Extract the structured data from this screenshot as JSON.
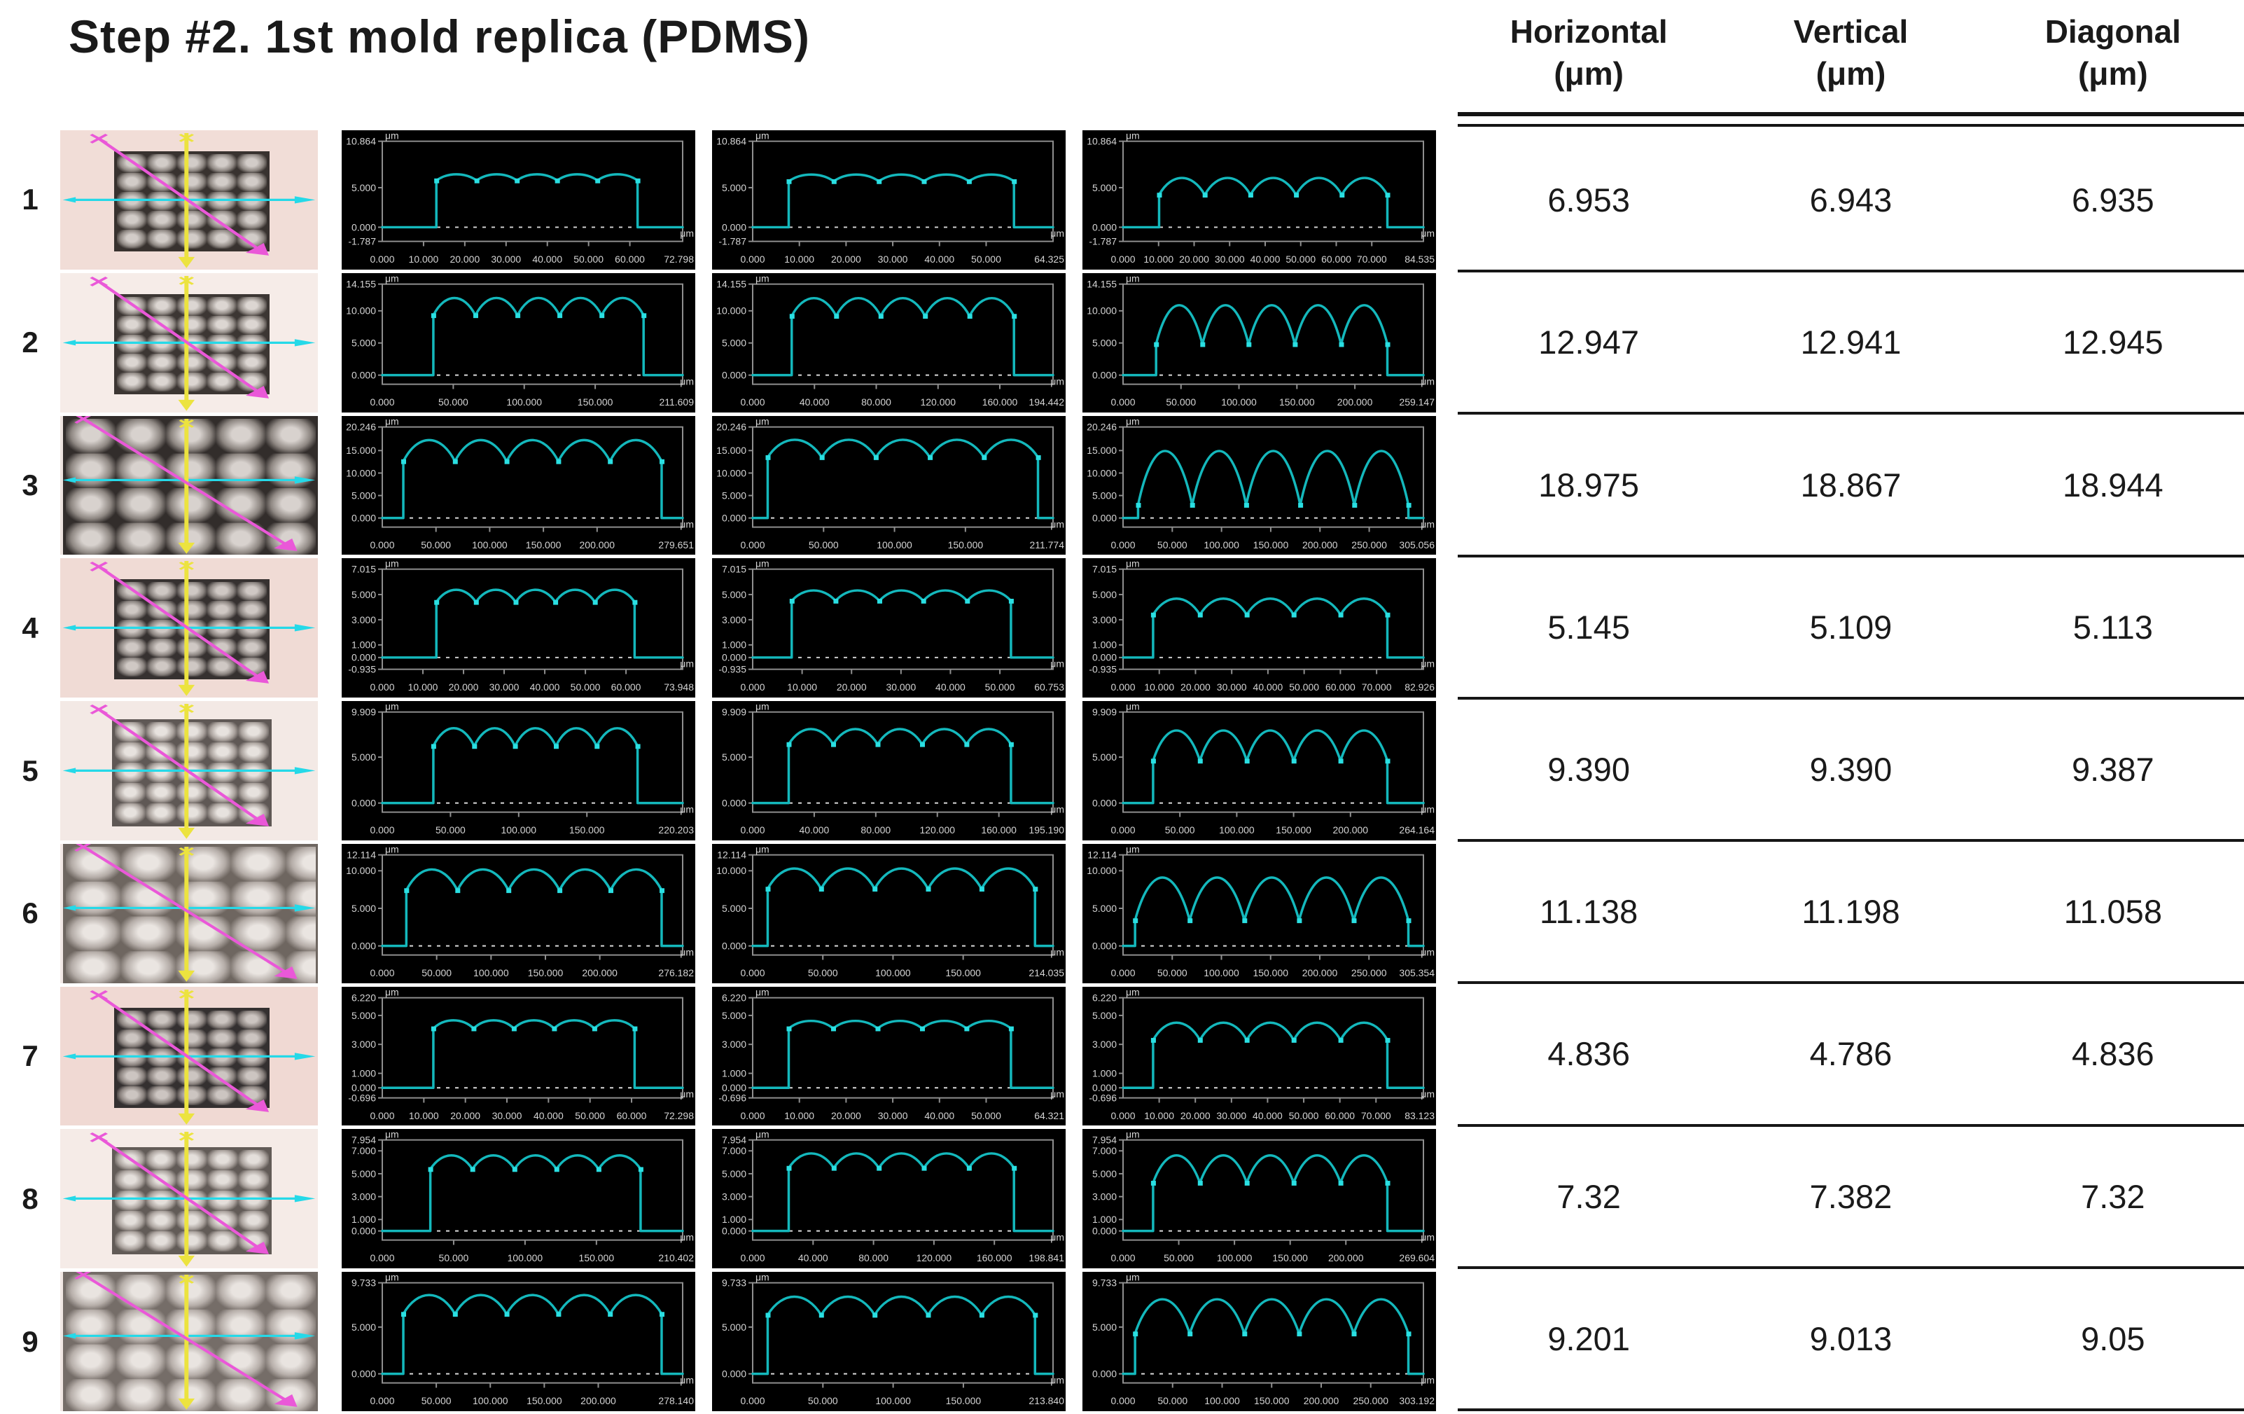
{
  "title": "Step #2. 1st mold replica (PDMS)",
  "columns": [
    {
      "label": "Horizontal",
      "unit": "(μm)"
    },
    {
      "label": "Vertical",
      "unit": "(μm)"
    },
    {
      "label": "Diagonal",
      "unit": "(μm)"
    }
  ],
  "plot_unit": "μm",
  "colors": {
    "trace": "#14b8bc",
    "marker": "#2adfe2",
    "plot_bg": "#000000",
    "frame": "#8f8f8f",
    "axis_text": "#d4d4d4",
    "cyan_arrow": "#25d9e8",
    "yellow_arrow": "#ece33f",
    "magenta_arrow": "#ea58d8",
    "table_line": "#161616"
  },
  "chart_data": {
    "type": "table",
    "columns": [
      "Sample",
      "Horizontal (μm)",
      "Vertical (μm)",
      "Diagonal (μm)"
    ],
    "rows": [
      [
        "1",
        "6.953",
        "6.943",
        "6.935"
      ],
      [
        "2",
        "12.947",
        "12.941",
        "12.945"
      ],
      [
        "3",
        "18.975",
        "18.867",
        "18.944"
      ],
      [
        "4",
        "5.145",
        "5.109",
        "5.113"
      ],
      [
        "5",
        "9.390",
        "9.390",
        "9.387"
      ],
      [
        "6",
        "11.138",
        "11.198",
        "11.058"
      ],
      [
        "7",
        "4.836",
        "4.786",
        "4.836"
      ],
      [
        "8",
        "7.32",
        "7.382",
        "7.32"
      ],
      [
        "9",
        "9.201",
        "9.013",
        "9.05"
      ]
    ]
  },
  "rows": [
    {
      "num": "1",
      "values": [
        "6.953",
        "6.943",
        "6.935"
      ],
      "micro": {
        "variant": "small",
        "bg": "#f1ddd7",
        "light": "#d2ccc8",
        "mid": "#8f8883",
        "dark": "#38322f",
        "cols": "20%",
        "rows_sz": "20%"
      },
      "plots": [
        {
          "y": [
            "10.864",
            "5.000",
            "0.000",
            "-1.787"
          ],
          "x": [
            "0.000",
            "10.000",
            "20.000",
            "30.000",
            "40.000",
            "50.000",
            "60.000",
            "72.798"
          ],
          "peak": 6.95,
          "valley": 5.9,
          "rise": 0.18,
          "fall": 0.85
        },
        {
          "y": [
            "10.864",
            "5.000",
            "0.000",
            "-1.787"
          ],
          "x": [
            "0.000",
            "10.000",
            "20.000",
            "30.000",
            "40.000",
            "50.000",
            "64.325"
          ],
          "peak": 6.94,
          "valley": 5.8,
          "rise": 0.12,
          "fall": 0.87
        },
        {
          "y": [
            "10.864",
            "5.000",
            "0.000",
            "-1.787"
          ],
          "x": [
            "0.000",
            "10.000",
            "20.000",
            "30.000",
            "40.000",
            "50.000",
            "60.000",
            "70.000",
            "84.535"
          ],
          "peak": 6.94,
          "valley": 4.1,
          "rise": 0.12,
          "fall": 0.88
        }
      ]
    },
    {
      "num": "2",
      "values": [
        "12.947",
        "12.941",
        "12.945"
      ],
      "micro": {
        "variant": "small",
        "bg": "#f6ece8",
        "light": "#dcd6d2",
        "mid": "#948d88",
        "dark": "#3c3633",
        "cols": "20%",
        "rows_sz": "20%"
      },
      "plots": [
        {
          "y": [
            "14.155",
            "10.000",
            "5.000",
            "0.000"
          ],
          "x": [
            "0.000",
            "50.000",
            "100.000",
            "150.000",
            "211.609"
          ],
          "peak": 12.9,
          "valley": 9.3,
          "rise": 0.17,
          "fall": 0.87
        },
        {
          "y": [
            "14.155",
            "10.000",
            "5.000",
            "0.000"
          ],
          "x": [
            "0.000",
            "40.000",
            "80.000",
            "120.000",
            "160.000",
            "194.442"
          ],
          "peak": 12.9,
          "valley": 9.2,
          "rise": 0.13,
          "fall": 0.87
        },
        {
          "y": [
            "14.155",
            "10.000",
            "5.000",
            "0.000"
          ],
          "x": [
            "0.000",
            "50.000",
            "100.000",
            "150.000",
            "200.000",
            "259.147"
          ],
          "peak": 12.9,
          "valley": 4.8,
          "rise": 0.11,
          "fall": 0.88
        }
      ]
    },
    {
      "num": "3",
      "values": [
        "18.975",
        "18.867",
        "18.944"
      ],
      "micro": {
        "variant": "large",
        "bg": "#eee4e0",
        "light": "#d8d2ce",
        "mid": "#8e8782",
        "dark": "#322d2b",
        "cols": "20%",
        "rows_sz": "25%"
      },
      "plots": [
        {
          "y": [
            "20.246",
            "15.000",
            "10.000",
            "5.000",
            "0.000"
          ],
          "x": [
            "0.000",
            "50.000",
            "100.000",
            "150.000",
            "200.000",
            "279.651"
          ],
          "peak": 18.9,
          "valley": 12.6,
          "rise": 0.07,
          "fall": 0.93
        },
        {
          "y": [
            "20.246",
            "15.000",
            "10.000",
            "5.000",
            "0.000"
          ],
          "x": [
            "0.000",
            "50.000",
            "100.000",
            "150.000",
            "211.774"
          ],
          "peak": 18.7,
          "valley": 13.5,
          "rise": 0.05,
          "fall": 0.95
        },
        {
          "y": [
            "20.246",
            "15.000",
            "10.000",
            "5.000",
            "0.000"
          ],
          "x": [
            "0.000",
            "50.000",
            "100.000",
            "150.000",
            "200.000",
            "250.000",
            "305.056"
          ],
          "peak": 18.9,
          "valley": 2.9,
          "rise": 0.05,
          "fall": 0.95
        }
      ]
    },
    {
      "num": "4",
      "values": [
        "5.145",
        "5.109",
        "5.113"
      ],
      "micro": {
        "variant": "small",
        "bg": "#f0dbd5",
        "light": "#cfc8c4",
        "mid": "#8b8480",
        "dark": "#363130",
        "cols": "20%",
        "rows_sz": "20%"
      },
      "plots": [
        {
          "y": [
            "7.015",
            "5.000",
            "3.000",
            "1.000",
            "0.000",
            "-0.935"
          ],
          "x": [
            "0.000",
            "10.000",
            "20.000",
            "30.000",
            "40.000",
            "50.000",
            "60.000",
            "73.948"
          ],
          "peak": 5.7,
          "valley": 4.4,
          "rise": 0.18,
          "fall": 0.84
        },
        {
          "y": [
            "7.015",
            "5.000",
            "3.000",
            "1.000",
            "0.000",
            "-0.935"
          ],
          "x": [
            "0.000",
            "10.000",
            "20.000",
            "30.000",
            "40.000",
            "50.000",
            "60.753"
          ],
          "peak": 5.6,
          "valley": 4.5,
          "rise": 0.13,
          "fall": 0.86
        },
        {
          "y": [
            "7.015",
            "5.000",
            "3.000",
            "1.000",
            "0.000",
            "-0.935"
          ],
          "x": [
            "0.000",
            "10.000",
            "20.000",
            "30.000",
            "40.000",
            "50.000",
            "60.000",
            "70.000",
            "82.926"
          ],
          "peak": 5.1,
          "valley": 3.4,
          "rise": 0.1,
          "fall": 0.88
        }
      ]
    },
    {
      "num": "5",
      "values": [
        "9.390",
        "9.390",
        "9.387"
      ],
      "micro": {
        "variant": "medium",
        "bg": "#f3e9e5",
        "light": "#e7e2de",
        "mid": "#aaa29d",
        "dark": "#5f5855",
        "cols": "20%",
        "rows_sz": "20%"
      },
      "plots": [
        {
          "y": [
            "9.909",
            "5.000",
            "0.000"
          ],
          "x": [
            "0.000",
            "50.000",
            "100.000",
            "150.000",
            "220.203"
          ],
          "peak": 8.8,
          "valley": 6.2,
          "rise": 0.17,
          "fall": 0.85
        },
        {
          "y": [
            "9.909",
            "5.000",
            "0.000"
          ],
          "x": [
            "0.000",
            "40.000",
            "80.000",
            "120.000",
            "160.000",
            "195.190"
          ],
          "peak": 8.6,
          "valley": 6.4,
          "rise": 0.12,
          "fall": 0.86
        },
        {
          "y": [
            "9.909",
            "5.000",
            "0.000"
          ],
          "x": [
            "0.000",
            "50.000",
            "100.000",
            "150.000",
            "200.000",
            "264.164"
          ],
          "peak": 9.0,
          "valley": 4.6,
          "rise": 0.1,
          "fall": 0.88
        }
      ]
    },
    {
      "num": "6",
      "values": [
        "11.138",
        "11.198",
        "11.058"
      ],
      "micro": {
        "variant": "large",
        "bg": "#f3e9e6",
        "light": "#eae5e1",
        "mid": "#b4aca7",
        "dark": "#6e6660",
        "cols": "22%",
        "rows_sz": "25%"
      },
      "plots": [
        {
          "y": [
            "12.114",
            "10.000",
            "5.000",
            "0.000"
          ],
          "x": [
            "0.000",
            "50.000",
            "100.000",
            "150.000",
            "200.000",
            "276.182"
          ],
          "peak": 11.1,
          "valley": 7.4,
          "rise": 0.08,
          "fall": 0.93
        },
        {
          "y": [
            "12.114",
            "10.000",
            "5.000",
            "0.000"
          ],
          "x": [
            "0.000",
            "50.000",
            "100.000",
            "150.000",
            "214.035"
          ],
          "peak": 11.2,
          "valley": 7.6,
          "rise": 0.05,
          "fall": 0.94
        },
        {
          "y": [
            "12.114",
            "10.000",
            "5.000",
            "0.000"
          ],
          "x": [
            "0.000",
            "50.000",
            "100.000",
            "150.000",
            "200.000",
            "250.000",
            "305.354"
          ],
          "peak": 11.0,
          "valley": 3.4,
          "rise": 0.04,
          "fall": 0.95
        }
      ]
    },
    {
      "num": "7",
      "values": [
        "4.836",
        "4.786",
        "4.836"
      ],
      "micro": {
        "variant": "small",
        "bg": "#f0d9d3",
        "light": "#ccc5c1",
        "mid": "#8a827e",
        "dark": "#343030",
        "cols": "20%",
        "rows_sz": "20%"
      },
      "plots": [
        {
          "y": [
            "6.220",
            "5.000",
            "3.000",
            "1.000",
            "0.000",
            "-0.696"
          ],
          "x": [
            "0.000",
            "10.000",
            "20.000",
            "30.000",
            "40.000",
            "50.000",
            "60.000",
            "72.298"
          ],
          "peak": 4.85,
          "valley": 4.1,
          "rise": 0.17,
          "fall": 0.84
        },
        {
          "y": [
            "6.220",
            "5.000",
            "3.000",
            "1.000",
            "0.000",
            "-0.696"
          ],
          "x": [
            "0.000",
            "10.000",
            "20.000",
            "30.000",
            "40.000",
            "50.000",
            "64.321"
          ],
          "peak": 4.8,
          "valley": 4.1,
          "rise": 0.12,
          "fall": 0.86
        },
        {
          "y": [
            "6.220",
            "5.000",
            "3.000",
            "1.000",
            "0.000",
            "-0.696"
          ],
          "x": [
            "0.000",
            "10.000",
            "20.000",
            "30.000",
            "40.000",
            "50.000",
            "60.000",
            "70.000",
            "83.123"
          ],
          "peak": 4.9,
          "valley": 3.3,
          "rise": 0.1,
          "fall": 0.88
        }
      ]
    },
    {
      "num": "8",
      "values": [
        "7.32",
        "7.382",
        "7.32"
      ],
      "micro": {
        "variant": "medium",
        "bg": "#f5ebe7",
        "light": "#e4dfdb",
        "mid": "#aba39e",
        "dark": "#625b57",
        "cols": "20%",
        "rows_sz": "20%"
      },
      "plots": [
        {
          "y": [
            "7.954",
            "7.000",
            "5.000",
            "3.000",
            "1.000",
            "0.000"
          ],
          "x": [
            "0.000",
            "50.000",
            "100.000",
            "150.000",
            "210.402"
          ],
          "peak": 7.0,
          "valley": 5.4,
          "rise": 0.16,
          "fall": 0.86
        },
        {
          "y": [
            "7.954",
            "7.000",
            "5.000",
            "3.000",
            "1.000",
            "0.000"
          ],
          "x": [
            "0.000",
            "40.000",
            "80.000",
            "120.000",
            "160.000",
            "198.841"
          ],
          "peak": 7.2,
          "valley": 5.5,
          "rise": 0.12,
          "fall": 0.87
        },
        {
          "y": [
            "7.954",
            "7.000",
            "5.000",
            "3.000",
            "1.000",
            "0.000"
          ],
          "x": [
            "0.000",
            "50.000",
            "100.000",
            "150.000",
            "200.000",
            "269.604"
          ],
          "peak": 7.4,
          "valley": 4.2,
          "rise": 0.1,
          "fall": 0.88
        }
      ]
    },
    {
      "num": "9",
      "values": [
        "9.201",
        "9.013",
        "9.05"
      ],
      "micro": {
        "variant": "large",
        "bg": "#f2e8e4",
        "light": "#e9e4e0",
        "mid": "#b7afaa",
        "dark": "#756d68",
        "cols": "20%",
        "rows_sz": "25%"
      },
      "plots": [
        {
          "y": [
            "9.733",
            "5.000",
            "0.000"
          ],
          "x": [
            "0.000",
            "50.000",
            "100.000",
            "150.000",
            "200.000",
            "278.140"
          ],
          "peak": 9.1,
          "valley": 6.4,
          "rise": 0.07,
          "fall": 0.93
        },
        {
          "y": [
            "9.733",
            "5.000",
            "0.000"
          ],
          "x": [
            "0.000",
            "50.000",
            "100.000",
            "150.000",
            "213.840"
          ],
          "peak": 8.9,
          "valley": 6.3,
          "rise": 0.05,
          "fall": 0.94
        },
        {
          "y": [
            "9.733",
            "5.000",
            "0.000"
          ],
          "x": [
            "0.000",
            "50.000",
            "100.000",
            "150.000",
            "200.000",
            "250.000",
            "303.192"
          ],
          "peak": 9.2,
          "valley": 4.3,
          "rise": 0.04,
          "fall": 0.95
        }
      ]
    }
  ]
}
